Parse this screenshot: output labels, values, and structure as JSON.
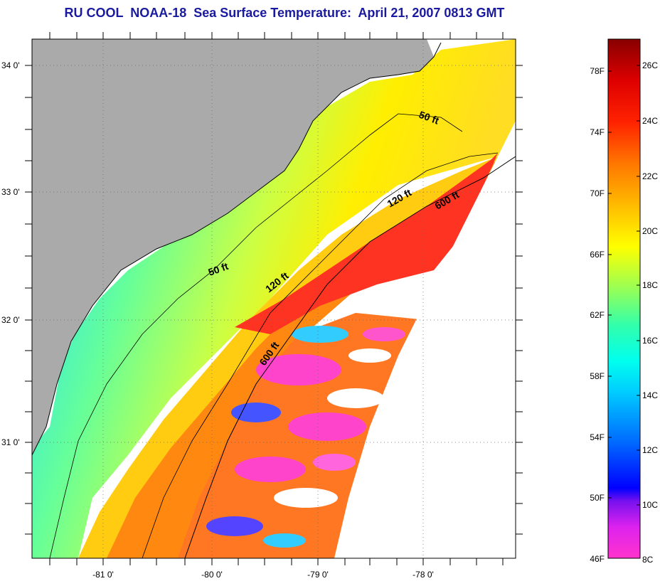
{
  "title": "RU COOL  NOAA-18  Sea Surface Temperature:  April 21, 2007 0813 GMT",
  "map": {
    "lat_labels": [
      "34 0'",
      "33 0'",
      "32 0'",
      "31 0'"
    ],
    "lon_labels": [
      "-81 0'",
      "-80 0'",
      "-79 0'",
      "-78 0'"
    ],
    "contour_labels": [
      {
        "text": "50 ft",
        "rotation": 20
      },
      {
        "text": "50 ft",
        "rotation": -20
      },
      {
        "text": "120 ft",
        "rotation": -30
      },
      {
        "text": "120 ft",
        "rotation": -38
      },
      {
        "text": "600 ft",
        "rotation": -30
      },
      {
        "text": "600 ft",
        "rotation": -55
      }
    ],
    "land_color": "#aaaaaa",
    "no_data_color": "#ffffff"
  },
  "colorbar": {
    "fahrenheit_labels": [
      "78F",
      "74F",
      "70F",
      "66F",
      "62F",
      "58F",
      "54F",
      "50F",
      "46F"
    ],
    "celsius_labels": [
      "26C",
      "24C",
      "22C",
      "20C",
      "18C",
      "16C",
      "14C",
      "12C",
      "10C",
      "8C"
    ],
    "colors": [
      "#ff33cc",
      "#cc22ff",
      "#7711ee",
      "#0000ff",
      "#0066ff",
      "#00ccff",
      "#00ffee",
      "#33ffaa",
      "#99ff55",
      "#ffff00",
      "#ffbb00",
      "#ff7700",
      "#ff2200",
      "#dd0000",
      "#880000"
    ]
  }
}
